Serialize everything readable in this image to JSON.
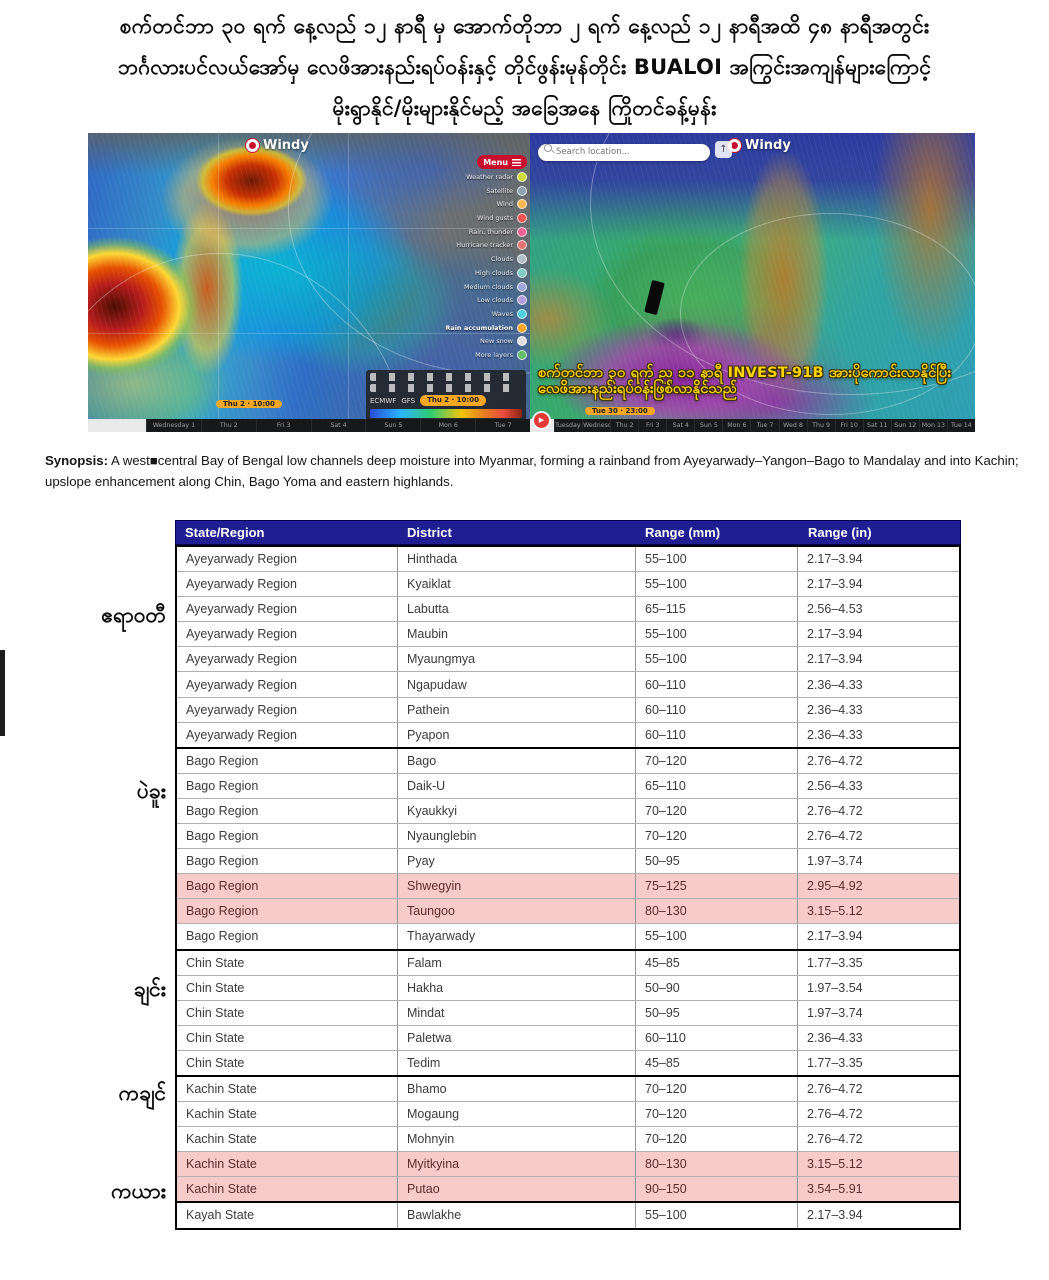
{
  "title": {
    "line1": "စက်တင်ဘာ ၃၀ ရက် နေ့လည် ၁၂ နာရီ မှ အောက်တိုဘာ ၂ ရက် နေ့လည် ၁၂ နာရီအထိ ၄၈ နာရီအတွင်း",
    "line2": "ဘင်္ဂလားပင်လယ်အော်မှ လေဖိအားနည်းရပ်ဝန်းနှင့် တိုင်ဖွန်းမုန်တိုင်း BUALOI အကြွင်းအကျန်များကြောင့်",
    "line3": "မိုးရွာနိုင်/မိုးများနိုင်မည့် အခြေအနေ ကြိုတင်ခန့်မှန်း"
  },
  "icons": {
    "play": "▶",
    "share": "↑"
  },
  "maps": {
    "left": {
      "brand": "Windy",
      "menu_label": "Menu",
      "layers": [
        {
          "label": "Weather radar",
          "color": "#cddc39",
          "active": false
        },
        {
          "label": "Satellite",
          "color": "#90a4ae",
          "active": false
        },
        {
          "label": "Wind",
          "color": "#ffb74d",
          "active": false
        },
        {
          "label": "Wind gusts",
          "color": "#ef5350",
          "active": false
        },
        {
          "label": "Rain, thunder",
          "color": "#f06292",
          "active": false
        },
        {
          "label": "Hurricane tracker",
          "color": "#e57373",
          "active": false
        },
        {
          "label": "Clouds",
          "color": "#b0bec5",
          "active": false
        },
        {
          "label": "High clouds",
          "color": "#80cbc4",
          "active": false
        },
        {
          "label": "Medium clouds",
          "color": "#9fa8da",
          "active": false
        },
        {
          "label": "Low clouds",
          "color": "#b39ddb",
          "active": false
        },
        {
          "label": "Waves",
          "color": "#4dd0e1",
          "active": false
        },
        {
          "label": "Rain accumulation",
          "color": "#ffa726",
          "active": true
        },
        {
          "label": "New snow",
          "color": "#e0e0e0",
          "active": false
        },
        {
          "label": "More layers",
          "color": "#66bb6a",
          "active": false
        }
      ],
      "models": [
        "ECMWF",
        "GFS"
      ],
      "time_pill": "Thu 2 · 10:00",
      "timeline_days": [
        "Wednesday 1",
        "Thu 2",
        "Fri 3",
        "Sat 4",
        "Sun 5",
        "Mon 6",
        "Tue 7"
      ]
    },
    "right": {
      "brand": "Windy",
      "search_placeholder": "Search location...",
      "caption": "စက်တင်ဘာ ၃၀ ရက် ည ၁၁ နာရီ INVEST-91B အားပိုကောင်းလာနိုင်ပြီး လေဖိအားနည်းရပ်ဝန်းဖြစ်လာနိုင်သည်",
      "time_pill": "Tue 30 · 23:00",
      "timeline_days": [
        "Tuesday 30",
        "Wednesday 1",
        "Thu 2",
        "Fri 3",
        "Sat 4",
        "Sun 5",
        "Mon 6",
        "Tue 7",
        "Wed 8",
        "Thu 9",
        "Fri 10",
        "Sat 11",
        "Sun 12",
        "Mon 13",
        "Tue 14"
      ]
    }
  },
  "synopsis": {
    "label": "Synopsis:",
    "text": " A west■central Bay of Bengal low channels deep moisture into Myanmar, forming a rainband from Ayeyarwady–Yangon–Bago to Mandalay and into Kachin; upslope enhancement along Chin, Bago Yoma and eastern highlands."
  },
  "table": {
    "headers": [
      "State/Region",
      "District",
      "Range (mm)",
      "Range (in)"
    ],
    "groups": [
      {
        "region": "Ayeyarwady Region",
        "label": "ဧရာဝတီ",
        "rows": [
          {
            "district": "Hinthada",
            "mm": "55–100",
            "in": "2.17–3.94",
            "hl": false
          },
          {
            "district": "Kyaiklat",
            "mm": "55–100",
            "in": "2.17–3.94",
            "hl": false
          },
          {
            "district": "Labutta",
            "mm": "65–115",
            "in": "2.56–4.53",
            "hl": false
          },
          {
            "district": "Maubin",
            "mm": "55–100",
            "in": "2.17–3.94",
            "hl": false
          },
          {
            "district": "Myaungmya",
            "mm": "55–100",
            "in": "2.17–3.94",
            "hl": false
          },
          {
            "district": "Ngapudaw",
            "mm": "60–110",
            "in": "2.36–4.33",
            "hl": false
          },
          {
            "district": "Pathein",
            "mm": "60–110",
            "in": "2.36–4.33",
            "hl": false
          },
          {
            "district": "Pyapon",
            "mm": "60–110",
            "in": "2.36–4.33",
            "hl": false
          }
        ]
      },
      {
        "region": "Bago Region",
        "label": "ပဲခူး",
        "rows": [
          {
            "district": "Bago",
            "mm": "70–120",
            "in": "2.76–4.72",
            "hl": false
          },
          {
            "district": "Daik-U",
            "mm": "65–110",
            "in": "2.56–4.33",
            "hl": false
          },
          {
            "district": "Kyaukkyi",
            "mm": "70–120",
            "in": "2.76–4.72",
            "hl": false
          },
          {
            "district": "Nyaunglebin",
            "mm": "70–120",
            "in": "2.76–4.72",
            "hl": false
          },
          {
            "district": "Pyay",
            "mm": "50–95",
            "in": "1.97–3.74",
            "hl": false
          },
          {
            "district": "Shwegyin",
            "mm": "75–125",
            "in": "2.95–4.92",
            "hl": true
          },
          {
            "district": "Taungoo",
            "mm": "80–130",
            "in": "3.15–5.12",
            "hl": true
          },
          {
            "district": "Thayarwady",
            "mm": "55–100",
            "in": "2.17–3.94",
            "hl": false
          }
        ]
      },
      {
        "region": "Chin State",
        "label": "ချင်း",
        "rows": [
          {
            "district": "Falam",
            "mm": "45–85",
            "in": "1.77–3.35",
            "hl": false
          },
          {
            "district": "Hakha",
            "mm": "50–90",
            "in": "1.97–3.54",
            "hl": false
          },
          {
            "district": "Mindat",
            "mm": "50–95",
            "in": "1.97–3.74",
            "hl": false
          },
          {
            "district": "Paletwa",
            "mm": "60–110",
            "in": "2.36–4.33",
            "hl": false
          },
          {
            "district": "Tedim",
            "mm": "45–85",
            "in": "1.77–3.35",
            "hl": false
          }
        ]
      },
      {
        "region": "Kachin State",
        "label": "ကချင်",
        "rows": [
          {
            "district": "Bhamo",
            "mm": "70–120",
            "in": "2.76–4.72",
            "hl": false
          },
          {
            "district": "Mogaung",
            "mm": "70–120",
            "in": "2.76–4.72",
            "hl": false
          },
          {
            "district": "Mohnyin",
            "mm": "70–120",
            "in": "2.76–4.72",
            "hl": false
          },
          {
            "district": "Myitkyina",
            "mm": "80–130",
            "in": "3.15–5.12",
            "hl": true
          },
          {
            "district": "Putao",
            "mm": "90–150",
            "in": "3.54–5.91",
            "hl": true
          }
        ]
      },
      {
        "region": "Kayah State",
        "label": "ကယား",
        "rows": [
          {
            "district": "Bawlakhe",
            "mm": "55–100",
            "in": "2.17–3.94",
            "hl": false
          }
        ]
      }
    ]
  },
  "colors": {
    "header_bg": "#1f1f92",
    "highlight_bg": "#f8cbcb",
    "windy_red": "#c8102e",
    "accent_orange": "#f5a623",
    "caption_yellow": "#ffd400"
  }
}
